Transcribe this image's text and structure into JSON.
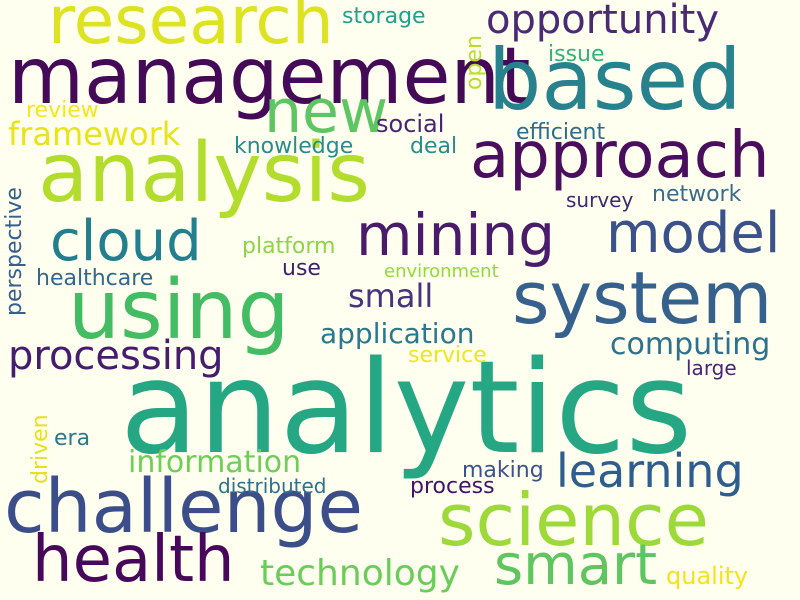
{
  "background_color": "#fffff0",
  "words": [
    {
      "text": "analytics",
      "color": "#26a784"
    },
    {
      "text": "management",
      "color": "#440a58"
    },
    {
      "text": "analysis",
      "color": "#b2dd2c"
    },
    {
      "text": "based",
      "color": "#27828e"
    },
    {
      "text": "approach",
      "color": "#4b0e5c"
    },
    {
      "text": "system",
      "color": "#37618d"
    },
    {
      "text": "using",
      "color": "#44bc63"
    },
    {
      "text": "challenge",
      "color": "#3b4e8a"
    },
    {
      "text": "science",
      "color": "#9ed93a"
    },
    {
      "text": "research",
      "color": "#dee321"
    },
    {
      "text": "health",
      "color": "#47075a"
    },
    {
      "text": "mining",
      "color": "#4a1a6b"
    },
    {
      "text": "cloud",
      "color": "#22808e"
    },
    {
      "text": "model",
      "color": "#3a5289"
    },
    {
      "text": "smart",
      "color": "#5ec560"
    },
    {
      "text": "opportunity",
      "color": "#4a2a74"
    },
    {
      "text": "new",
      "color": "#5dc562"
    },
    {
      "text": "learning",
      "color": "#2f5e8e"
    },
    {
      "text": "processing",
      "color": "#451c6e"
    },
    {
      "text": "technology",
      "color": "#6acd5a"
    },
    {
      "text": "framework",
      "color": "#e8e419"
    },
    {
      "text": "information",
      "color": "#6ece58"
    },
    {
      "text": "computing",
      "color": "#2d718e"
    },
    {
      "text": "application",
      "color": "#2b788e"
    },
    {
      "text": "small",
      "color": "#46337e"
    },
    {
      "text": "quality",
      "color": "#f5e21a"
    },
    {
      "text": "social",
      "color": "#482474"
    },
    {
      "text": "storage",
      "color": "#23a08a"
    },
    {
      "text": "issue",
      "color": "#32b17a"
    },
    {
      "text": "efficient",
      "color": "#2e6c8e"
    },
    {
      "text": "knowledge",
      "color": "#2a8b8c"
    },
    {
      "text": "deal",
      "color": "#2a8b8c"
    },
    {
      "text": "network",
      "color": "#3a6b8c"
    },
    {
      "text": "survey",
      "color": "#3d2970"
    },
    {
      "text": "platform",
      "color": "#8dd544"
    },
    {
      "text": "use",
      "color": "#3d1f6a"
    },
    {
      "text": "healthcare",
      "color": "#31688e"
    },
    {
      "text": "environment",
      "color": "#93d741"
    },
    {
      "text": "service",
      "color": "#f0e51e"
    },
    {
      "text": "large",
      "color": "#482576"
    },
    {
      "text": "era",
      "color": "#2a788e"
    },
    {
      "text": "making",
      "color": "#3b528b"
    },
    {
      "text": "distributed",
      "color": "#2c728e"
    },
    {
      "text": "process",
      "color": "#43126a"
    },
    {
      "text": "review",
      "color": "#f6e61f"
    },
    {
      "text": "open",
      "color": "#b8de29"
    },
    {
      "text": "perspective",
      "color": "#355f8d"
    },
    {
      "text": "driven",
      "color": "#e6e21a"
    }
  ]
}
